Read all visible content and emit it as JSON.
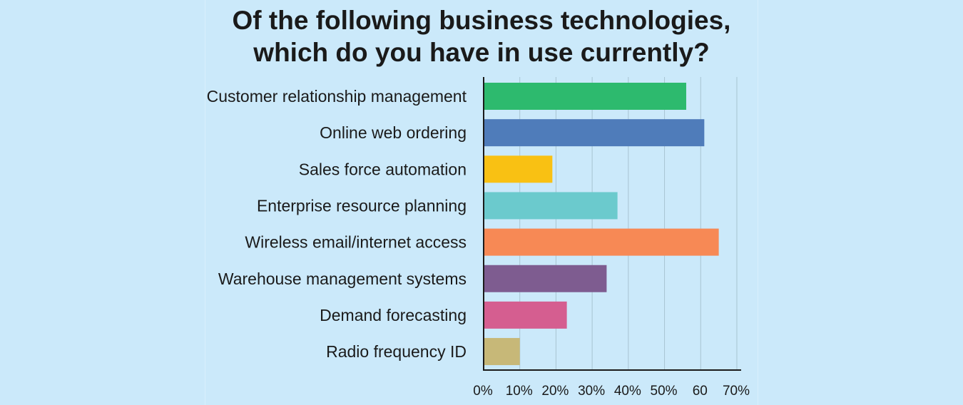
{
  "chart_data": {
    "type": "bar",
    "orientation": "horizontal",
    "title": [
      "Of the following business technologies,",
      "which do you have in use currently?"
    ],
    "categories": [
      "Customer relationship management",
      "Online web ordering",
      "Sales force automation",
      "Enterprise resource planning",
      "Wireless email/internet access",
      "Warehouse management systems",
      "Demand forecasting",
      "Radio frequency ID"
    ],
    "values": [
      56,
      61,
      19,
      37,
      65,
      34,
      23,
      10
    ],
    "colors": [
      "#2dba6e",
      "#4f7cba",
      "#f9c113",
      "#6bcacd",
      "#f78955",
      "#7e5c90",
      "#d55e90",
      "#c7b878"
    ],
    "xlim": [
      0,
      70
    ],
    "xticks": [
      0,
      10,
      20,
      30,
      40,
      50,
      60,
      70
    ],
    "xtick_labels": [
      "0%",
      "10%",
      "20%",
      "30%",
      "40%",
      "50%",
      "60",
      "70%"
    ],
    "grid": "vertical",
    "background": "#cbe9fa"
  }
}
